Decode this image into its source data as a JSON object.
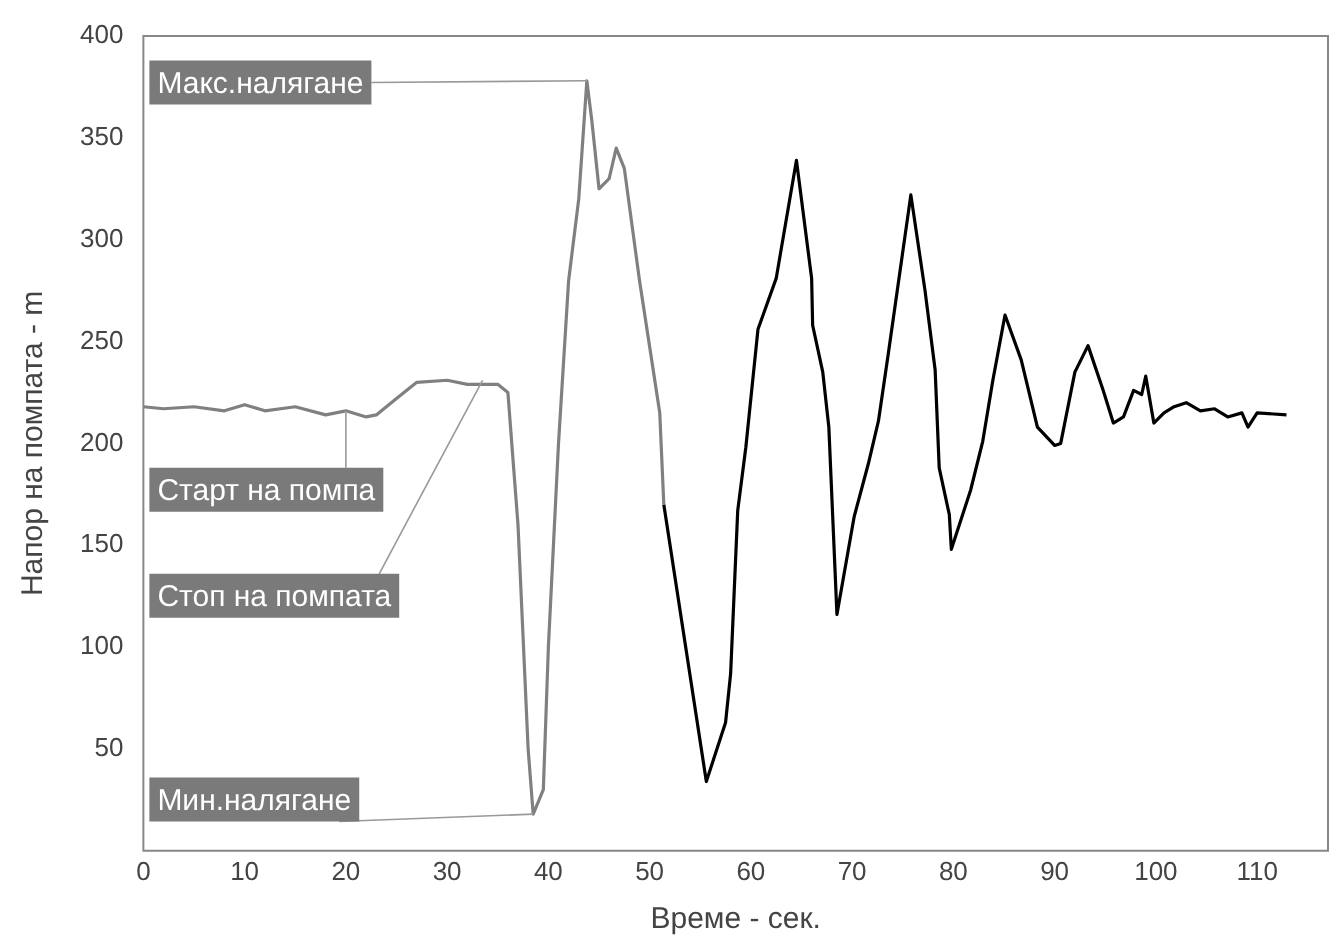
{
  "chart_data": {
    "type": "line",
    "xlabel": "Време - сек.",
    "ylabel": "Напор на помпата - m",
    "xlim": [
      0,
      117
    ],
    "xticks": [
      0,
      10,
      20,
      30,
      40,
      50,
      60,
      70,
      80,
      90,
      100,
      110
    ],
    "ylim": [
      0,
      400
    ],
    "yticks": [
      50,
      100,
      150,
      200,
      250,
      300,
      350,
      400
    ],
    "grid": false,
    "legend": false,
    "marker": "none",
    "line_style": "solid",
    "series": [
      {
        "color": "#808080",
        "x": [
          0,
          2,
          5,
          8,
          10,
          12,
          15,
          18,
          20,
          22,
          23,
          25,
          27,
          30,
          32,
          35,
          36,
          37,
          38,
          38.5,
          39.5,
          40,
          41,
          42,
          43,
          43.8,
          44.3,
          45,
          46,
          46.7,
          47.5,
          49,
          51,
          51.4
        ],
        "values": [
          218,
          217,
          218,
          216,
          219,
          216,
          218,
          214,
          216,
          213,
          214,
          222,
          230,
          231,
          229,
          229,
          225,
          160,
          50,
          18,
          30,
          100,
          200,
          280,
          320,
          378,
          358,
          325,
          330,
          345,
          335,
          280,
          215,
          170
        ]
      },
      {
        "color": "#000000",
        "x": [
          51.4,
          55.6,
          57.5,
          58,
          58.7,
          59.5,
          60.7,
          62.5,
          64.5,
          66,
          66.1,
          67.1,
          67.7,
          68.5,
          70.2,
          71.6,
          72.6,
          73.6,
          75.8,
          77.2,
          78.2,
          78.6,
          79.6,
          79.8,
          81.7,
          82.9,
          83.9,
          85.1,
          86.7,
          88.3,
          90,
          90.6,
          92,
          93.3,
          94.8,
          95.8,
          96.8,
          97.8,
          98.6,
          99,
          99.8,
          100.8,
          101.8,
          103,
          104.4,
          105.8,
          107.1,
          108.5,
          109.1,
          110,
          112.9
        ],
        "values": [
          170,
          34,
          63,
          87,
          167,
          198,
          256,
          281,
          339,
          281,
          258,
          235,
          208,
          116,
          164,
          190,
          211,
          245,
          322,
          275,
          236,
          188,
          165,
          148,
          177,
          201,
          231,
          263,
          241,
          208,
          199,
          200,
          235,
          248,
          226,
          210,
          213,
          226,
          224,
          233,
          210,
          215,
          218,
          220,
          216,
          217,
          213,
          215,
          208,
          215,
          214
        ]
      }
    ],
    "annotations": [
      {
        "text": "Макс.налягане",
        "x": 43.8,
        "y": 378
      },
      {
        "text": "Старт на помпа",
        "x": 20,
        "y": 216
      },
      {
        "text": "Стоп на помпата",
        "x": 33.5,
        "y": 231
      },
      {
        "text": "Мин.налягане",
        "x": 38.5,
        "y": 18
      }
    ]
  }
}
